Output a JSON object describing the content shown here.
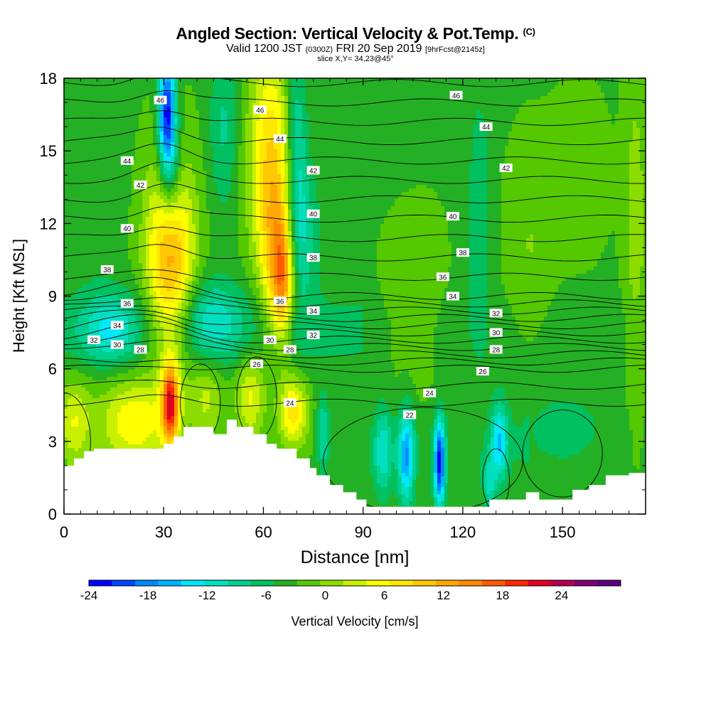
{
  "header": {
    "title": "Angled Section: Vertical Velocity & Pot.Temp.",
    "title_tag": "(C)",
    "valid_prefix": "Valid 1200 JST",
    "valid_utc": "(0300Z)",
    "valid_date": "FRI 20 Sep 2019",
    "forecast": "[9hrFcst@2145z]",
    "slice": "slice X,Y= 34,23@45°"
  },
  "colors": {
    "palette": [
      "#0000ff",
      "#0044ff",
      "#0088ff",
      "#00b4ff",
      "#00e8ff",
      "#00e0c0",
      "#00d090",
      "#00c060",
      "#24b024",
      "#54c800",
      "#8cdc00",
      "#c8f000",
      "#ffff00",
      "#ffe800",
      "#ffc800",
      "#ffa800",
      "#ff8800",
      "#ff5a00",
      "#ff2800",
      "#e00020",
      "#b40050",
      "#800070",
      "#5a0080"
    ],
    "terrain": "#ffffff",
    "contour": "#000000"
  },
  "chart_data": {
    "type": "heatmap",
    "xlabel": "Distance [nm]",
    "ylabel": "Height [Kft MSL]",
    "xlim": [
      0,
      175
    ],
    "ylim": [
      0,
      18
    ],
    "x_ticks": [
      0,
      30,
      60,
      90,
      120,
      150
    ],
    "y_ticks": [
      0,
      3,
      6,
      9,
      12,
      15,
      18
    ],
    "colorbar": {
      "label": "Vertical Velocity [cm/s]",
      "levels": [
        -24,
        -21,
        -18,
        -15,
        -12,
        -9,
        -6,
        -3,
        0,
        3,
        6,
        9,
        12,
        15,
        18,
        21,
        24,
        27
      ],
      "tick_labels": [
        "-24",
        "-18",
        "-12",
        "-6",
        "0",
        "6",
        "12",
        "18",
        "24"
      ],
      "tick_values": [
        -24,
        -18,
        -12,
        -6,
        0,
        6,
        12,
        18,
        24
      ]
    },
    "terrain_profile": {
      "x": [
        0,
        3,
        3,
        6,
        6,
        9,
        9,
        30,
        30,
        33,
        33,
        36,
        36,
        45,
        45,
        49,
        49,
        52,
        52,
        57,
        57,
        61,
        61,
        64,
        64,
        70,
        70,
        74,
        74,
        76,
        76,
        80,
        80,
        84,
        84,
        88,
        88,
        91,
        91,
        128,
        128,
        139,
        139,
        143,
        143,
        153,
        153,
        158,
        158,
        163,
        163,
        170,
        170,
        175
      ],
      "y": [
        2.0,
        2.0,
        2.3,
        2.3,
        2.6,
        2.6,
        2.7,
        2.7,
        2.9,
        2.9,
        3.2,
        3.2,
        3.6,
        3.6,
        3.3,
        3.3,
        3.9,
        3.9,
        3.6,
        3.6,
        3.3,
        3.3,
        2.9,
        2.9,
        2.7,
        2.7,
        2.3,
        2.3,
        1.9,
        1.9,
        1.6,
        1.6,
        1.2,
        1.2,
        0.9,
        0.9,
        0.6,
        0.6,
        0.3,
        0.3,
        0.6,
        0.6,
        0.9,
        0.9,
        0.6,
        0.6,
        1.0,
        1.0,
        1.2,
        1.2,
        1.6,
        1.6,
        1.7,
        1.7
      ]
    },
    "vertical_velocity_features": [
      {
        "x": 32,
        "z": 10.6,
        "sx": 5,
        "sz": 3.0,
        "w": 20
      },
      {
        "x": 32,
        "z": 4.5,
        "sx": 1.8,
        "sz": 1.2,
        "w": 28
      },
      {
        "x": 31,
        "z": 16.7,
        "sx": 1.8,
        "sz": 1.6,
        "w": -24
      },
      {
        "x": 32,
        "z": 14.2,
        "sx": 2.5,
        "sz": 1.6,
        "w": -12
      },
      {
        "x": 62,
        "z": 14.5,
        "sx": 4.5,
        "sz": 3.4,
        "w": 15
      },
      {
        "x": 64,
        "z": 10.5,
        "sx": 3.2,
        "sz": 2.4,
        "w": 11
      },
      {
        "x": 66,
        "z": 9.5,
        "sx": 2.2,
        "sz": 1.6,
        "w": 14
      },
      {
        "x": 70,
        "z": 14.5,
        "sx": 2.2,
        "sz": 3.6,
        "w": -10
      },
      {
        "x": 73,
        "z": 11.5,
        "sx": 3.0,
        "sz": 2.0,
        "w": -6
      },
      {
        "x": 14,
        "z": 7.6,
        "sx": 6.0,
        "sz": 1.0,
        "w": -9
      },
      {
        "x": 44,
        "z": 8.0,
        "sx": 7.0,
        "sz": 1.2,
        "w": -8
      },
      {
        "x": 21,
        "z": 3.8,
        "sx": 7.5,
        "sz": 1.3,
        "w": 12
      },
      {
        "x": 3,
        "z": 3.8,
        "sx": 3.5,
        "sz": 1.3,
        "w": 9
      },
      {
        "x": 43,
        "z": 4.8,
        "sx": 3.5,
        "sz": 1.2,
        "w": 7
      },
      {
        "x": 56,
        "z": 4.8,
        "sx": 3.0,
        "sz": 1.2,
        "w": 10
      },
      {
        "x": 69,
        "z": 4.2,
        "sx": 3.0,
        "sz": 1.0,
        "w": 14
      },
      {
        "x": 78,
        "z": 3.3,
        "sx": 1.3,
        "sz": 1.1,
        "w": -9
      },
      {
        "x": 96,
        "z": 2.6,
        "sx": 2.0,
        "sz": 1.3,
        "w": -10
      },
      {
        "x": 103,
        "z": 2.4,
        "sx": 1.7,
        "sz": 1.4,
        "w": -17
      },
      {
        "x": 113,
        "z": 2.1,
        "sx": 1.2,
        "sz": 1.3,
        "w": -24
      },
      {
        "x": 131,
        "z": 3.0,
        "sx": 1.8,
        "sz": 1.2,
        "w": -13
      },
      {
        "x": 128,
        "z": 1.2,
        "sx": 1.3,
        "sz": 0.8,
        "w": -9
      },
      {
        "x": 105,
        "z": 9.5,
        "sx": 6.0,
        "sz": 3.0,
        "w": 3.5
      },
      {
        "x": 125,
        "z": 12.0,
        "sx": 2.5,
        "sz": 4.0,
        "w": -5
      },
      {
        "x": 140,
        "z": 11.0,
        "sx": 5.0,
        "sz": 3.0,
        "w": 3.5
      },
      {
        "x": 172,
        "z": 12.0,
        "sx": 2.5,
        "sz": 5.0,
        "w": 5
      },
      {
        "x": 150,
        "z": 3.5,
        "sx": 10.0,
        "sz": 1.2,
        "w": -4
      },
      {
        "x": 155,
        "z": 14.0,
        "sx": 6.0,
        "sz": 2.5,
        "w": 2.5
      },
      {
        "x": 100,
        "z": 16.0,
        "sx": 8.0,
        "sz": 2.0,
        "w": -2.5
      },
      {
        "x": 10,
        "z": 13.0,
        "sx": 5.0,
        "sz": 3.0,
        "w": -2.0
      },
      {
        "x": 48,
        "z": 16.0,
        "sx": 3.0,
        "sz": 2.5,
        "w": -6
      }
    ],
    "theta_contours": [
      {
        "level": 22,
        "label": "22",
        "x": 104,
        "z": 4.1
      },
      {
        "level": 24,
        "label": "24",
        "x": 110,
        "z": 5.0
      },
      {
        "level": 24,
        "label": "24",
        "x": 68,
        "z": 4.6
      },
      {
        "level": 26,
        "label": "26",
        "x": 126,
        "z": 5.9
      },
      {
        "level": 26,
        "label": "26",
        "x": 58,
        "z": 6.2
      },
      {
        "level": 28,
        "label": "28",
        "x": 130,
        "z": 6.8
      },
      {
        "level": 28,
        "label": "28",
        "x": 68,
        "z": 6.8
      },
      {
        "level": 28,
        "label": "28",
        "x": 23,
        "z": 6.8
      },
      {
        "level": 30,
        "label": "30",
        "x": 130,
        "z": 7.5
      },
      {
        "level": 30,
        "label": "30",
        "x": 62,
        "z": 7.2
      },
      {
        "level": 30,
        "label": "30",
        "x": 16,
        "z": 7.0
      },
      {
        "level": 32,
        "label": "32",
        "x": 130,
        "z": 8.3
      },
      {
        "level": 32,
        "label": "32",
        "x": 75,
        "z": 7.4
      },
      {
        "level": 32,
        "label": "32",
        "x": 9,
        "z": 7.2
      },
      {
        "level": 34,
        "label": "34",
        "x": 117,
        "z": 9.0
      },
      {
        "level": 34,
        "label": "34",
        "x": 75,
        "z": 8.4
      },
      {
        "level": 34,
        "label": "34",
        "x": 16,
        "z": 7.8
      },
      {
        "level": 36,
        "label": "36",
        "x": 114,
        "z": 9.8
      },
      {
        "level": 36,
        "label": "36",
        "x": 65,
        "z": 8.8
      },
      {
        "level": 36,
        "label": "36",
        "x": 19,
        "z": 8.7
      },
      {
        "level": 38,
        "label": "38",
        "x": 120,
        "z": 10.8
      },
      {
        "level": 38,
        "label": "38",
        "x": 75,
        "z": 10.6
      },
      {
        "level": 38,
        "label": "38",
        "x": 13,
        "z": 10.1
      },
      {
        "level": 40,
        "label": "40",
        "x": 117,
        "z": 12.3
      },
      {
        "level": 40,
        "label": "40",
        "x": 75,
        "z": 12.4
      },
      {
        "level": 40,
        "label": "40",
        "x": 19,
        "z": 11.8
      },
      {
        "level": 42,
        "label": "42",
        "x": 133,
        "z": 14.3
      },
      {
        "level": 42,
        "label": "42",
        "x": 75,
        "z": 14.2
      },
      {
        "level": 42,
        "label": "42",
        "x": 23,
        "z": 13.6
      },
      {
        "level": 44,
        "label": "44",
        "x": 127,
        "z": 16.0
      },
      {
        "level": 44,
        "label": "44",
        "x": 65,
        "z": 15.5
      },
      {
        "level": 44,
        "label": "44",
        "x": 19,
        "z": 14.6
      },
      {
        "level": 46,
        "label": "46",
        "x": 118,
        "z": 17.3
      },
      {
        "level": 46,
        "label": "46",
        "x": 59,
        "z": 16.7
      },
      {
        "level": 46,
        "label": "46",
        "x": 29,
        "z": 17.1
      }
    ]
  }
}
